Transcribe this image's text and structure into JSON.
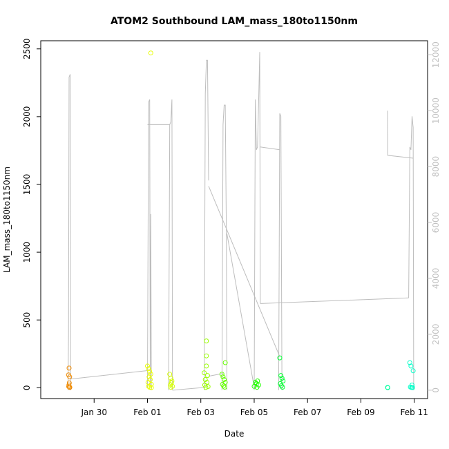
{
  "chart_data": {
    "type": "scatter",
    "title": "ATOM2 Southbound LAM_mass_180to1150nm",
    "xlabel": "Date",
    "ylabel": "LAM_mass_180to1150nm",
    "xlim": [
      "2024-01-28 00:00",
      "2024-02-11 12:00"
    ],
    "ylim": [
      -80,
      2560
    ],
    "y2lim": [
      -300,
      12500
    ],
    "x_ticks": [
      {
        "value": "2024-01-30",
        "label": "Jan 30"
      },
      {
        "value": "2024-02-01",
        "label": "Feb 01"
      },
      {
        "value": "2024-02-03",
        "label": "Feb 03"
      },
      {
        "value": "2024-02-05",
        "label": "Feb 05"
      },
      {
        "value": "2024-02-07",
        "label": "Feb 07"
      },
      {
        "value": "2024-02-09",
        "label": "Feb 09"
      },
      {
        "value": "2024-02-11",
        "label": "Feb 11"
      }
    ],
    "y_ticks": [
      {
        "value": 0,
        "label": "0"
      },
      {
        "value": 500,
        "label": "500"
      },
      {
        "value": 1000,
        "label": "1000"
      },
      {
        "value": 1500,
        "label": "1500"
      },
      {
        "value": 2000,
        "label": "2000"
      },
      {
        "value": 2500,
        "label": "2500"
      }
    ],
    "y2_ticks": [
      {
        "value": 0,
        "label": "0"
      },
      {
        "value": 2000,
        "label": "2000"
      },
      {
        "value": 4000,
        "label": "4000"
      },
      {
        "value": 6000,
        "label": "6000"
      },
      {
        "value": 8000,
        "label": "8000"
      },
      {
        "value": 10000,
        "label": "10000"
      },
      {
        "value": 12000,
        "label": "12000"
      }
    ],
    "grid": false,
    "colors": {
      "secondary_line": "#bdbdbd",
      "axis": "#000000",
      "secondary_axis": "#c0c0c0"
    },
    "point_clusters": [
      {
        "color": "#f08a00",
        "points": [
          [
            "2024-01-29 01:30",
            145
          ],
          [
            "2024-01-29 01:00",
            95
          ],
          [
            "2024-01-29 02:00",
            80
          ],
          [
            "2024-01-29 01:40",
            35
          ],
          [
            "2024-01-29 01:20",
            20
          ],
          [
            "2024-01-29 01:10",
            8
          ],
          [
            "2024-01-29 01:50",
            4
          ],
          [
            "2024-01-29 02:10",
            2
          ]
        ]
      },
      {
        "color": "#e8ff00",
        "points": [
          [
            "2024-02-01 03:00",
            2470
          ],
          [
            "2024-02-01 00:00",
            160
          ],
          [
            "2024-02-01 01:00",
            140
          ],
          [
            "2024-02-01 02:00",
            120
          ],
          [
            "2024-02-01 03:00",
            100
          ],
          [
            "2024-02-01 01:30",
            80
          ],
          [
            "2024-02-01 02:30",
            60
          ],
          [
            "2024-02-01 00:30",
            40
          ],
          [
            "2024-02-01 03:30",
            25
          ],
          [
            "2024-02-01 01:00",
            10
          ],
          [
            "2024-02-01 02:00",
            3
          ],
          [
            "2024-02-01 03:30",
            1
          ]
        ]
      },
      {
        "color": "#d6ff00",
        "points": [
          [
            "2024-02-01 20:00",
            100
          ],
          [
            "2024-02-01 21:00",
            70
          ],
          [
            "2024-02-01 22:00",
            50
          ],
          [
            "2024-02-01 21:30",
            35
          ],
          [
            "2024-02-01 20:30",
            20
          ],
          [
            "2024-02-01 22:30",
            10
          ],
          [
            "2024-02-01 21:00",
            3
          ]
        ]
      },
      {
        "color": "#9bff00",
        "points": [
          [
            "2024-02-03 05:00",
            345
          ],
          [
            "2024-02-03 05:00",
            235
          ],
          [
            "2024-02-03 05:00",
            160
          ],
          [
            "2024-02-03 03:00",
            110
          ],
          [
            "2024-02-03 06:00",
            90
          ],
          [
            "2024-02-03 04:00",
            60
          ],
          [
            "2024-02-03 05:30",
            40
          ],
          [
            "2024-02-03 03:30",
            20
          ],
          [
            "2024-02-03 06:30",
            8
          ],
          [
            "2024-02-03 04:30",
            2
          ]
        ]
      },
      {
        "color": "#66ff00",
        "points": [
          [
            "2024-02-03 22:00",
            185
          ],
          [
            "2024-02-03 19:00",
            100
          ],
          [
            "2024-02-03 20:00",
            80
          ],
          [
            "2024-02-03 21:00",
            60
          ],
          [
            "2024-02-03 22:00",
            40
          ],
          [
            "2024-02-03 19:30",
            25
          ],
          [
            "2024-02-03 20:30",
            12
          ],
          [
            "2024-02-03 21:30",
            4
          ]
        ]
      },
      {
        "color": "#22ff00",
        "points": [
          [
            "2024-02-05 01:00",
            40
          ],
          [
            "2024-02-05 02:00",
            30
          ],
          [
            "2024-02-05 03:00",
            50
          ],
          [
            "2024-02-05 04:00",
            20
          ],
          [
            "2024-02-05 00:00",
            10
          ],
          [
            "2024-02-05 02:30",
            3
          ]
        ]
      },
      {
        "color": "#00ff30",
        "points": [
          [
            "2024-02-05 23:00",
            220
          ],
          [
            "2024-02-06 00:00",
            90
          ],
          [
            "2024-02-06 01:00",
            70
          ],
          [
            "2024-02-06 02:00",
            50
          ],
          [
            "2024-02-05 23:30",
            30
          ],
          [
            "2024-02-06 00:30",
            15
          ],
          [
            "2024-02-06 01:30",
            4
          ]
        ]
      },
      {
        "color": "#00ffa0",
        "points": [
          [
            "2024-02-10 00:00",
            2
          ],
          [
            "2024-02-10 00:10",
            0
          ]
        ]
      },
      {
        "color": "#00ffc8",
        "points": [
          [
            "2024-02-10 20:00",
            185
          ],
          [
            "2024-02-10 21:00",
            160
          ],
          [
            "2024-02-10 23:00",
            125
          ],
          [
            "2024-02-10 22:00",
            20
          ],
          [
            "2024-02-10 20:30",
            5
          ],
          [
            "2024-02-10 21:30",
            2
          ],
          [
            "2024-02-10 22:30",
            1
          ]
        ]
      }
    ],
    "secondary_series": {
      "note_axis": "right",
      "segments": [
        [
          [
            "2024-01-29 00:30",
            0
          ],
          [
            "2024-01-29 01:00",
            2000
          ],
          [
            "2024-01-29 01:30",
            11200
          ],
          [
            "2024-01-29 02:30",
            11300
          ],
          [
            "2024-01-29 02:50",
            0
          ]
        ],
        [
          [
            "2024-01-29 02:50",
            400
          ],
          [
            "2024-02-01 00:00",
            700
          ]
        ],
        [
          [
            "2024-02-01 00:00",
            100
          ],
          [
            "2024-02-01 01:00",
            10300
          ],
          [
            "2024-02-01 02:00",
            10400
          ],
          [
            "2024-02-01 02:30",
            200
          ],
          [
            "2024-02-01 03:00",
            6300
          ],
          [
            "2024-02-01 03:30",
            0
          ]
        ],
        [
          [
            "2024-02-01 00:00",
            9500
          ],
          [
            "2024-02-01 20:00",
            9500
          ]
        ],
        [
          [
            "2024-02-01 19:00",
            0
          ],
          [
            "2024-02-01 20:00",
            9500
          ],
          [
            "2024-02-01 21:00",
            9600
          ],
          [
            "2024-02-01 22:00",
            10400
          ],
          [
            "2024-02-01 22:30",
            0
          ]
        ],
        [
          [
            "2024-02-01 22:30",
            0
          ],
          [
            "2024-02-03 04:00",
            100
          ]
        ],
        [
          [
            "2024-02-03 03:00",
            0
          ],
          [
            "2024-02-03 04:00",
            10600
          ],
          [
            "2024-02-03 05:00",
            11800
          ],
          [
            "2024-02-03 06:00",
            11800
          ],
          [
            "2024-02-03 07:00",
            7500
          ]
        ],
        [
          [
            "2024-02-03 07:00",
            7300
          ],
          [
            "2024-02-05 23:00",
            1200
          ]
        ],
        [
          [
            "2024-02-03 07:00",
            500
          ],
          [
            "2024-02-03 20:00",
            600
          ]
        ],
        [
          [
            "2024-02-03 19:00",
            0
          ],
          [
            "2024-02-03 20:00",
            9500
          ],
          [
            "2024-02-03 21:00",
            10200
          ],
          [
            "2024-02-03 22:00",
            10200
          ],
          [
            "2024-02-03 23:00",
            5600
          ],
          [
            "2024-02-03 23:30",
            0
          ]
        ],
        [
          [
            "2024-02-03 23:30",
            5600
          ],
          [
            "2024-02-05 00:00",
            100
          ]
        ],
        [
          [
            "2024-02-05 00:00",
            0
          ],
          [
            "2024-02-05 01:00",
            10400
          ],
          [
            "2024-02-05 02:00",
            8600
          ],
          [
            "2024-02-05 03:00",
            8700
          ],
          [
            "2024-02-05 04:00",
            10300
          ],
          [
            "2024-02-05 05:00",
            12100
          ],
          [
            "2024-02-05 05:30",
            3100
          ]
        ],
        [
          [
            "2024-02-05 05:30",
            8700
          ],
          [
            "2024-02-05 23:00",
            8600
          ]
        ],
        [
          [
            "2024-02-05 05:30",
            3100
          ],
          [
            "2024-02-10 19:00",
            3300
          ]
        ],
        [
          [
            "2024-02-05 22:00",
            0
          ],
          [
            "2024-02-05 23:00",
            9900
          ],
          [
            "2024-02-06 00:00",
            9800
          ],
          [
            "2024-02-06 01:00",
            0
          ]
        ],
        [
          [
            "2024-02-10 00:00",
            10000
          ],
          [
            "2024-02-10 00:10",
            8400
          ],
          [
            "2024-02-10 23:00",
            8300
          ]
        ],
        [
          [
            "2024-02-10 19:00",
            3300
          ],
          [
            "2024-02-10 20:00",
            8700
          ],
          [
            "2024-02-10 21:00",
            8600
          ],
          [
            "2024-02-10 22:00",
            9800
          ],
          [
            "2024-02-10 23:00",
            9400
          ],
          [
            "2024-02-10 23:30",
            0
          ]
        ]
      ]
    }
  }
}
